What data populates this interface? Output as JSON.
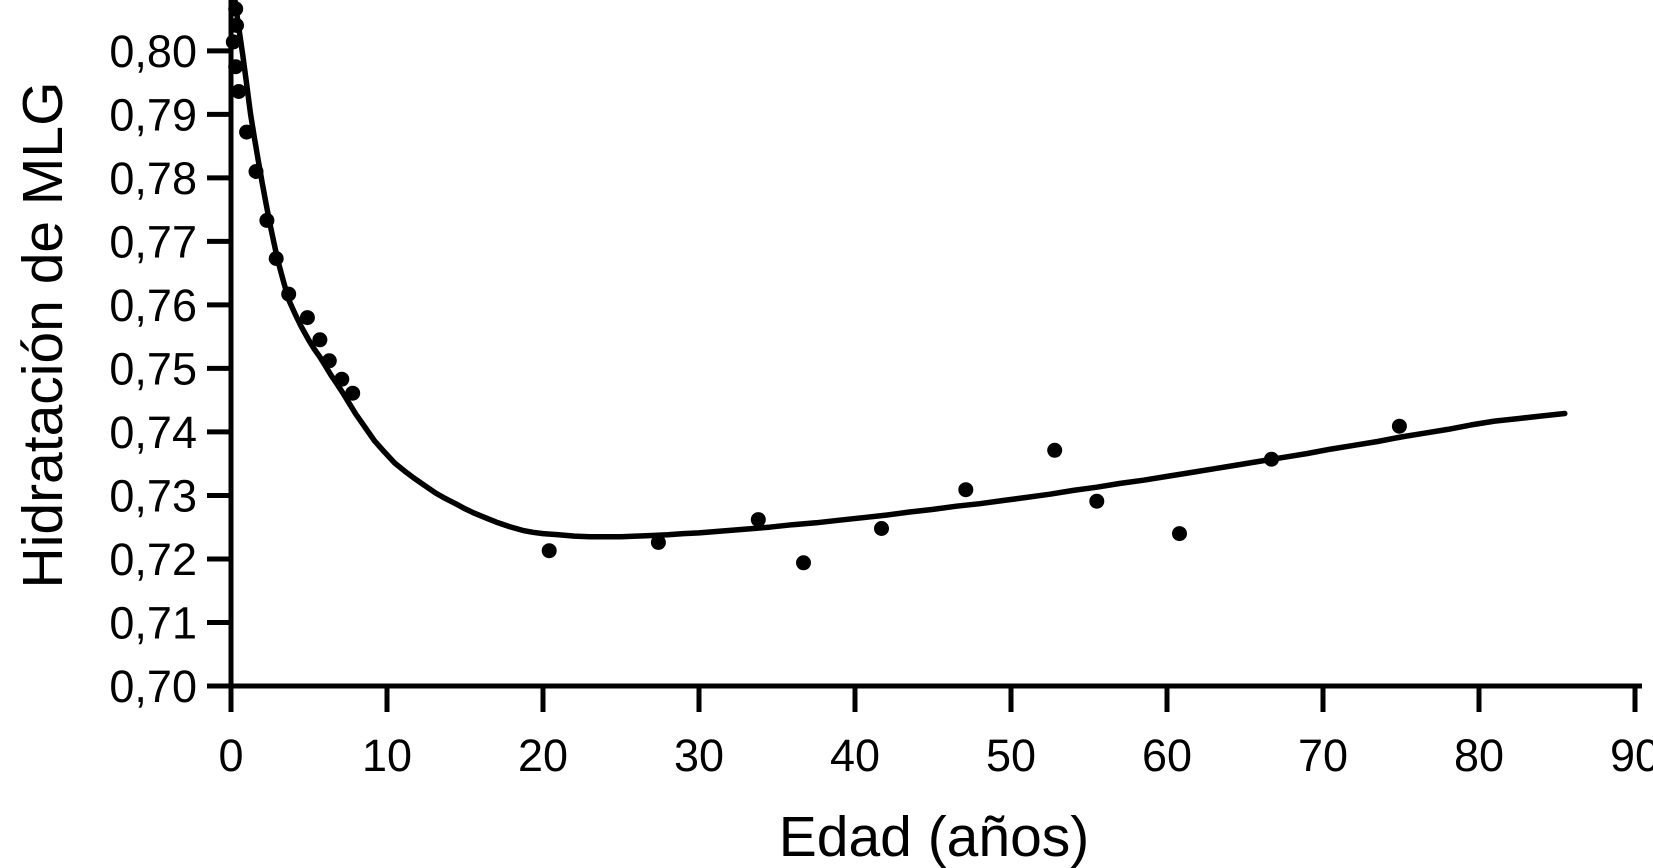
{
  "chart_data": {
    "type": "scatter",
    "title": "",
    "xlabel": "Edad (años)",
    "ylabel": "Hidratación de MLG",
    "xlim": [
      0,
      90
    ],
    "ylim": [
      0.7,
      0.808
    ],
    "grid": false,
    "legend": null,
    "decimal_separator": ",",
    "ink_color": "#000000",
    "background_color": "#ffffff",
    "x_ticks": [
      0,
      10,
      20,
      30,
      40,
      50,
      60,
      70,
      80,
      90
    ],
    "x_tick_labels": [
      "0",
      "10",
      "20",
      "30",
      "40",
      "50",
      "60",
      "70",
      "80",
      "90"
    ],
    "y_ticks": [
      0.7,
      0.71,
      0.72,
      0.73,
      0.74,
      0.75,
      0.76,
      0.77,
      0.78,
      0.79,
      0.8
    ],
    "y_tick_labels": [
      "0,70",
      "0,71",
      "0,72",
      "0,73",
      "0,74",
      "0,75",
      "0,76",
      "0,77",
      "0,78",
      "0,79",
      "0,80"
    ],
    "series": [
      {
        "name": "observed-points",
        "type": "scatter",
        "marker": "circle",
        "color": "#000000",
        "points": [
          [
            0.15,
            0.8014
          ],
          [
            0.3,
            0.8066
          ],
          [
            0.35,
            0.804
          ],
          [
            0.3,
            0.7975
          ],
          [
            0.5,
            0.7936
          ],
          [
            1.0,
            0.7872
          ],
          [
            1.6,
            0.781
          ],
          [
            2.3,
            0.7733
          ],
          [
            2.9,
            0.7673
          ],
          [
            3.7,
            0.7617
          ],
          [
            4.9,
            0.758
          ],
          [
            5.7,
            0.7545
          ],
          [
            6.3,
            0.7512
          ],
          [
            7.1,
            0.7483
          ],
          [
            7.8,
            0.7461
          ],
          [
            20.4,
            0.7213
          ],
          [
            27.4,
            0.7226
          ],
          [
            33.8,
            0.7262
          ],
          [
            36.7,
            0.7194
          ],
          [
            41.7,
            0.7248
          ],
          [
            47.1,
            0.7309
          ],
          [
            52.8,
            0.7371
          ],
          [
            55.5,
            0.7291
          ],
          [
            60.8,
            0.724
          ],
          [
            66.7,
            0.7357
          ],
          [
            74.9,
            0.7409
          ]
        ]
      },
      {
        "name": "fitted-curve",
        "type": "line",
        "color": "#000000",
        "points": [
          [
            0.25,
            0.808
          ],
          [
            0.5,
            0.8036
          ],
          [
            0.75,
            0.7994
          ],
          [
            1.0,
            0.7948
          ],
          [
            1.25,
            0.7901
          ],
          [
            1.5,
            0.7863
          ],
          [
            1.75,
            0.7827
          ],
          [
            2.0,
            0.7792
          ],
          [
            2.25,
            0.7759
          ],
          [
            2.5,
            0.7727
          ],
          [
            2.75,
            0.7698
          ],
          [
            3.0,
            0.767
          ],
          [
            3.35,
            0.7638
          ],
          [
            3.7,
            0.7608
          ],
          [
            4.1,
            0.7586
          ],
          [
            4.5,
            0.7566
          ],
          [
            5.0,
            0.7544
          ],
          [
            5.35,
            0.753
          ],
          [
            5.7,
            0.7518
          ],
          [
            6.05,
            0.7504
          ],
          [
            6.4,
            0.749
          ],
          [
            6.75,
            0.7477
          ],
          [
            7.1,
            0.7464
          ],
          [
            7.55,
            0.7446
          ],
          [
            8.0,
            0.7428
          ],
          [
            8.6,
            0.7407
          ],
          [
            9.2,
            0.7386
          ],
          [
            9.85,
            0.7368
          ],
          [
            10.5,
            0.7351
          ],
          [
            11.15,
            0.7338
          ],
          [
            11.8,
            0.7326
          ],
          [
            12.45,
            0.7315
          ],
          [
            13.1,
            0.7304
          ],
          [
            13.75,
            0.7295
          ],
          [
            14.4,
            0.7287
          ],
          [
            15.0,
            0.7279
          ],
          [
            15.6,
            0.7272
          ],
          [
            16.3,
            0.7265
          ],
          [
            17.0,
            0.7258
          ],
          [
            17.85,
            0.7251
          ],
          [
            18.7,
            0.7245
          ],
          [
            19.35,
            0.7242
          ],
          [
            20,
            0.724
          ],
          [
            21,
            0.7238
          ],
          [
            22,
            0.7236
          ],
          [
            23,
            0.7235
          ],
          [
            24,
            0.7235
          ],
          [
            25,
            0.7235
          ],
          [
            26,
            0.7236
          ],
          [
            27,
            0.7237
          ],
          [
            28,
            0.7238
          ],
          [
            29,
            0.724
          ],
          [
            30,
            0.7241
          ],
          [
            31.5,
            0.7244
          ],
          [
            33,
            0.7247
          ],
          [
            34.5,
            0.725
          ],
          [
            36,
            0.7254
          ],
          [
            37.5,
            0.7257
          ],
          [
            39,
            0.7261
          ],
          [
            40.5,
            0.7265
          ],
          [
            42,
            0.7269
          ],
          [
            43.5,
            0.7274
          ],
          [
            45,
            0.7278
          ],
          [
            46.5,
            0.7283
          ],
          [
            48,
            0.7287
          ],
          [
            49.5,
            0.7292
          ],
          [
            51,
            0.7297
          ],
          [
            52.5,
            0.7302
          ],
          [
            54,
            0.7308
          ],
          [
            55.5,
            0.7313
          ],
          [
            57,
            0.7319
          ],
          [
            58.5,
            0.7324
          ],
          [
            60,
            0.733
          ],
          [
            61.5,
            0.7336
          ],
          [
            63,
            0.7342
          ],
          [
            64.5,
            0.7348
          ],
          [
            66,
            0.7354
          ],
          [
            67.5,
            0.736
          ],
          [
            69,
            0.7366
          ],
          [
            70.5,
            0.7373
          ],
          [
            72,
            0.7379
          ],
          [
            73.5,
            0.7385
          ],
          [
            75,
            0.7392
          ],
          [
            76.5,
            0.7398
          ],
          [
            78,
            0.7404
          ],
          [
            79.5,
            0.7411
          ],
          [
            81,
            0.7417
          ],
          [
            82.5,
            0.7421
          ],
          [
            84,
            0.7425
          ],
          [
            85.5,
            0.7429
          ]
        ]
      }
    ]
  }
}
